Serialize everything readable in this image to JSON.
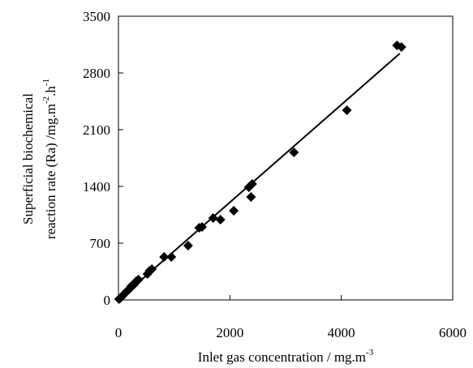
{
  "chart_data": {
    "type": "scatter",
    "xlabel": {
      "main": "Inlet gas concentration / mg.m",
      "sup": "-3"
    },
    "ylabel": {
      "line1": "Superficial biochemical",
      "line2_main": "reaction rate (Ra) /mg.m",
      "line2_sup1": "-2",
      "line2_mid": ".h",
      "line2_sup2": "-1"
    },
    "xlim": [
      0,
      6000
    ],
    "ylim": [
      0,
      3500
    ],
    "xticks": [
      0,
      2000,
      4000,
      6000
    ],
    "yticks": [
      0,
      700,
      1400,
      2100,
      2800,
      3500
    ],
    "xtick_labels": [
      "0",
      "2000",
      "4000",
      "6000"
    ],
    "ytick_labels": [
      "0",
      "700",
      "1400",
      "2100",
      "2800",
      "3500"
    ],
    "grid": false,
    "marker": "diamond",
    "marker_color": "#000000",
    "points": [
      {
        "x": 10,
        "y": 10
      },
      {
        "x": 30,
        "y": 20
      },
      {
        "x": 60,
        "y": 40
      },
      {
        "x": 100,
        "y": 70
      },
      {
        "x": 140,
        "y": 100
      },
      {
        "x": 190,
        "y": 130
      },
      {
        "x": 230,
        "y": 170
      },
      {
        "x": 280,
        "y": 190
      },
      {
        "x": 320,
        "y": 230
      },
      {
        "x": 360,
        "y": 250
      },
      {
        "x": 520,
        "y": 320
      },
      {
        "x": 560,
        "y": 360
      },
      {
        "x": 600,
        "y": 380
      },
      {
        "x": 820,
        "y": 530
      },
      {
        "x": 950,
        "y": 530
      },
      {
        "x": 1250,
        "y": 670
      },
      {
        "x": 1450,
        "y": 890
      },
      {
        "x": 1500,
        "y": 900
      },
      {
        "x": 1700,
        "y": 1010
      },
      {
        "x": 1830,
        "y": 990
      },
      {
        "x": 2070,
        "y": 1100
      },
      {
        "x": 2340,
        "y": 1390
      },
      {
        "x": 2380,
        "y": 1270
      },
      {
        "x": 2400,
        "y": 1430
      },
      {
        "x": 3150,
        "y": 1820
      },
      {
        "x": 4100,
        "y": 2340
      },
      {
        "x": 5000,
        "y": 3140
      },
      {
        "x": 5080,
        "y": 3120
      }
    ],
    "fit_line": {
      "x": [
        0,
        5050
      ],
      "y": [
        0,
        3040
      ],
      "color": "#000000"
    }
  }
}
